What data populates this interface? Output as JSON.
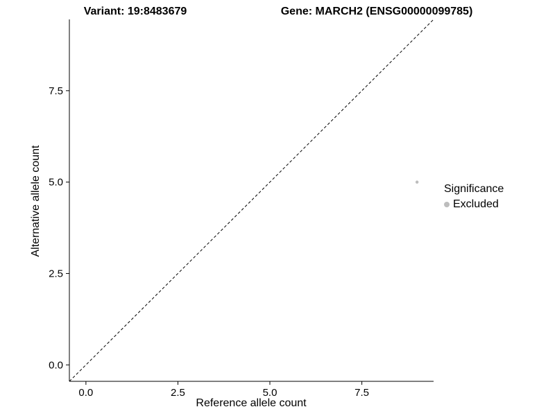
{
  "titles": {
    "variant": "Variant: 19:8483679",
    "gene": "Gene: MARCH2 (ENSG00000099785)"
  },
  "axes": {
    "x_label": "Reference allele count",
    "y_label": "Alternative allele count"
  },
  "legend": {
    "title": "Significance",
    "items": [
      {
        "label": "Excluded",
        "color": "#bdbdbd"
      }
    ]
  },
  "chart_data": {
    "type": "scatter",
    "title": "Variant: 19:8483679 | Gene: MARCH2 (ENSG00000099785)",
    "xlabel": "Reference allele count",
    "ylabel": "Alternative allele count",
    "xlim": [
      -0.45,
      9.45
    ],
    "ylim": [
      -0.45,
      9.45
    ],
    "x_tick_values": [
      0.0,
      2.5,
      5.0,
      7.5
    ],
    "x_tick_labels": [
      "0.0",
      "2.5",
      "5.0",
      "7.5"
    ],
    "y_tick_values": [
      0.0,
      2.5,
      5.0,
      7.5
    ],
    "y_tick_labels": [
      "0.0",
      "2.5",
      "5.0",
      "7.5"
    ],
    "grid": false,
    "legend_position": "right",
    "series": [
      {
        "name": "Excluded",
        "color": "#bdbdbd",
        "point_radius": 2.2,
        "points": [
          {
            "x": 9,
            "y": 5
          }
        ]
      }
    ],
    "reference_line": {
      "type": "identity",
      "style": "dashed",
      "color": "#000000",
      "from": [
        -0.45,
        -0.45
      ],
      "to": [
        9.45,
        9.45
      ]
    }
  }
}
